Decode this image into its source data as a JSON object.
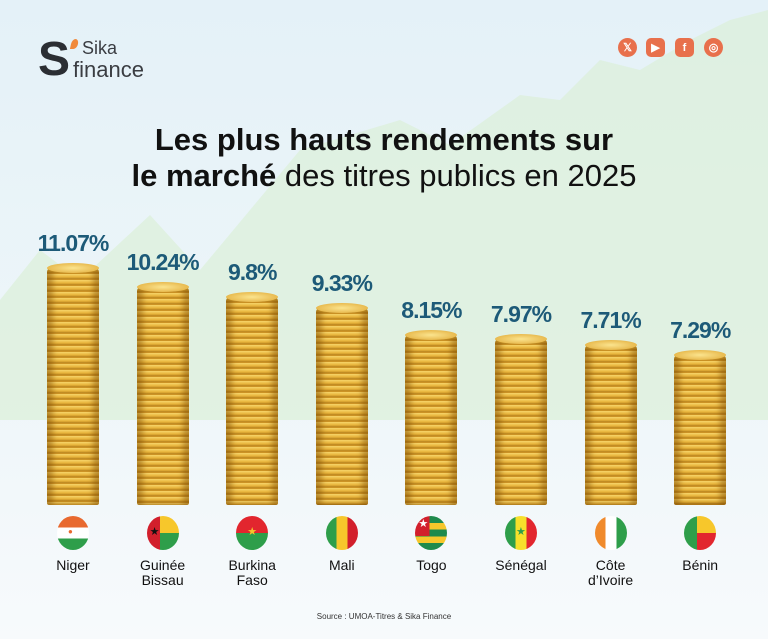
{
  "brand": {
    "logo_text": "Sika finance",
    "social": [
      "x-icon",
      "youtube-icon",
      "facebook-icon",
      "instagram-icon"
    ],
    "social_glyphs": [
      "𝕏",
      "▶",
      "f",
      "◎"
    ]
  },
  "title": {
    "bold_1": "Les plus hauts rendements sur",
    "bold_2": "le marché",
    "rest_2": " des titres publics en 2025"
  },
  "colors": {
    "value_label": "#1d5a78",
    "social": "#e8704c",
    "coin": "#e2a52d"
  },
  "chart_data": {
    "type": "bar",
    "title": "Les plus hauts rendements sur le marché des titres publics en 2025",
    "categories": [
      "Niger",
      "Guinée Bissau",
      "Burkina Faso",
      "Mali",
      "Togo",
      "Sénégal",
      "Côte d'Ivoire",
      "Bénin"
    ],
    "category_lines": [
      [
        "Niger"
      ],
      [
        "Guinée",
        "Bissau"
      ],
      [
        "Burkina",
        "Faso"
      ],
      [
        "Mali"
      ],
      [
        "Togo"
      ],
      [
        "Sénégal"
      ],
      [
        "Côte",
        "d’Ivoire"
      ],
      [
        "Bénin"
      ]
    ],
    "values": [
      11.07,
      10.24,
      9.8,
      9.33,
      8.15,
      7.97,
      7.71,
      7.29
    ],
    "value_labels": [
      "11.07%",
      "10.24%",
      "9.8%",
      "9.33%",
      "8.15%",
      "7.97%",
      "7.71%",
      "7.29%"
    ],
    "unit": "%",
    "bar_style": "coin stacks",
    "grid": false,
    "legend": "none"
  },
  "flags": [
    {
      "type": "h",
      "colors": [
        "#e8692f",
        "#ffffff",
        "#2e9e4a"
      ],
      "emblem": "#e8692f"
    },
    {
      "type": "gw",
      "colors": [
        "#d21f2c",
        "#f7c72b",
        "#2e9e4a"
      ],
      "emblem": "#111"
    },
    {
      "type": "h",
      "colors": [
        "#e2262e",
        "#2e9e4a"
      ],
      "emblem": "#f7c72b"
    },
    {
      "type": "v",
      "colors": [
        "#2e9e4a",
        "#f7c72b",
        "#d21f2c"
      ]
    },
    {
      "type": "tg",
      "colors": [
        "#1f8a4c",
        "#f7c72b",
        "#d21f2c"
      ],
      "emblem": "#ffffff"
    },
    {
      "type": "v",
      "colors": [
        "#2e9e4a",
        "#f7e02b",
        "#e2262e"
      ],
      "emblem": "#2e9e4a"
    },
    {
      "type": "v",
      "colors": [
        "#f08a2c",
        "#ffffff",
        "#2e9e4a"
      ]
    },
    {
      "type": "bj",
      "colors": [
        "#2e9e4a",
        "#f7c72b",
        "#e2262e"
      ]
    }
  ],
  "source": "Source : UMOA-Titres & Sika Finance"
}
